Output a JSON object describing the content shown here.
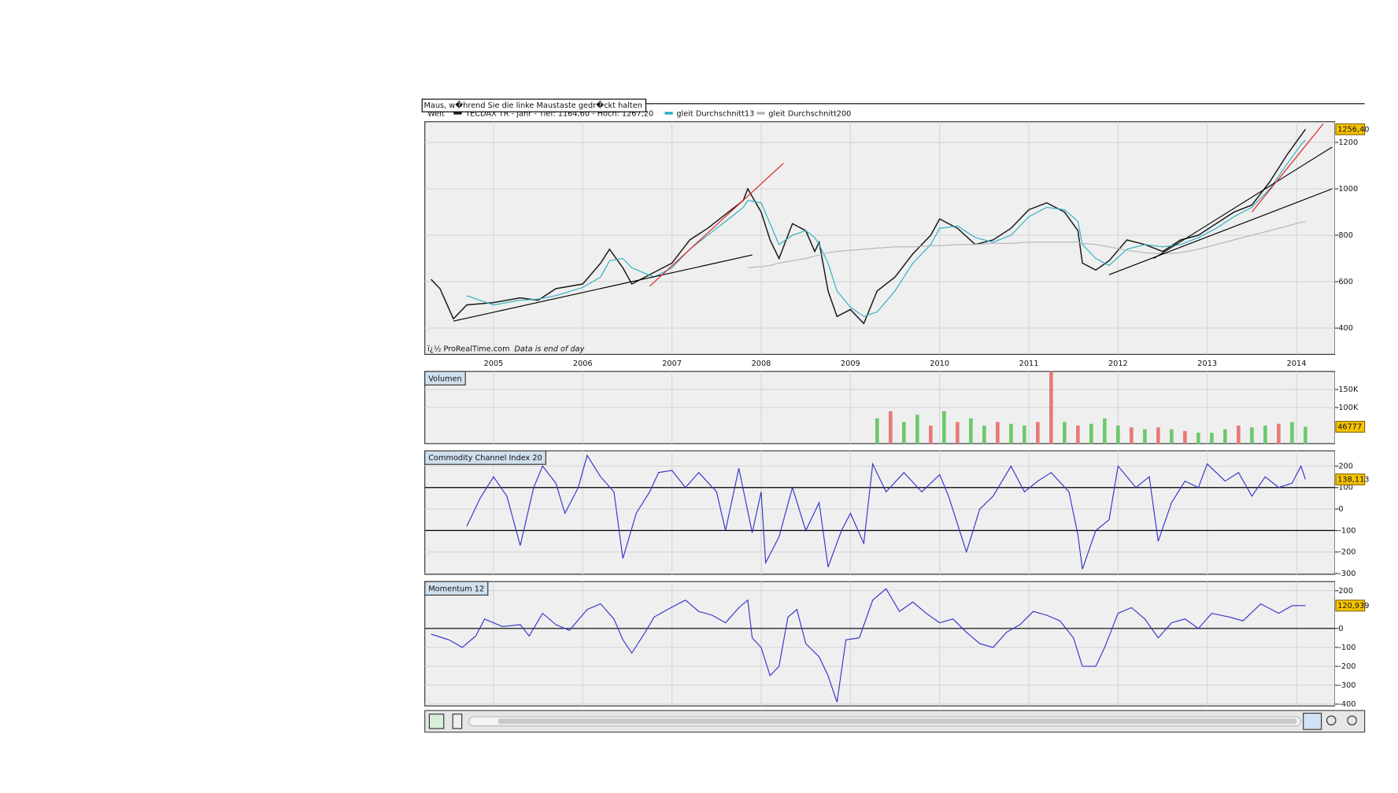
{
  "tooltip": "Maus, w�hrend Sie die linke Maustaste gedr�ckt halten",
  "chart_data": [
    {
      "type": "line",
      "legend_prefix": "Welt",
      "note": "ï¿½ ProRealTime.com",
      "note_italic": "Data is end of day",
      "x": [
        2004.3,
        2004.4,
        2004.55,
        2004.7,
        2005.0,
        2005.3,
        2005.5,
        2005.7,
        2006.0,
        2006.2,
        2006.3,
        2006.45,
        2006.55,
        2006.8,
        2007.0,
        2007.2,
        2007.4,
        2007.6,
        2007.8,
        2007.85,
        2008.0,
        2008.1,
        2008.2,
        2008.35,
        2008.5,
        2008.6,
        2008.65,
        2008.75,
        2008.85,
        2009.0,
        2009.15,
        2009.3,
        2009.5,
        2009.7,
        2009.9,
        2010.0,
        2010.2,
        2010.4,
        2010.6,
        2010.8,
        2011.0,
        2011.2,
        2011.4,
        2011.55,
        2011.6,
        2011.75,
        2011.9,
        2012.1,
        2012.3,
        2012.5,
        2012.7,
        2012.9,
        2013.1,
        2013.3,
        2013.5,
        2013.7,
        2013.9,
        2014.05,
        2014.1
      ],
      "series": [
        {
          "name": "TECDAX TR - Jahr - Tief: 1164,60 - Hoch: 1267,20",
          "color": "#1a1a1a",
          "values": [
            610,
            570,
            440,
            500,
            510,
            530,
            520,
            570,
            590,
            680,
            740,
            660,
            590,
            640,
            680,
            780,
            830,
            890,
            950,
            1000,
            900,
            780,
            700,
            850,
            820,
            730,
            770,
            560,
            450,
            480,
            420,
            560,
            620,
            720,
            800,
            870,
            830,
            760,
            780,
            830,
            910,
            940,
            900,
            820,
            680,
            650,
            690,
            780,
            760,
            730,
            780,
            800,
            850,
            900,
            930,
            1030,
            1150,
            1230,
            1256.4
          ]
        },
        {
          "name": "gleit Durchschnitt13",
          "color": "#2ab0c0",
          "values": [
            null,
            null,
            null,
            540,
            500,
            520,
            525,
            540,
            575,
            620,
            690,
            700,
            660,
            620,
            660,
            740,
            800,
            860,
            920,
            950,
            940,
            850,
            760,
            800,
            820,
            790,
            760,
            680,
            560,
            490,
            450,
            470,
            560,
            680,
            760,
            830,
            840,
            790,
            770,
            800,
            880,
            920,
            910,
            860,
            760,
            700,
            670,
            740,
            760,
            750,
            760,
            790,
            830,
            880,
            920,
            1000,
            1110,
            1190,
            1210
          ]
        },
        {
          "name": "gleit Durchschnitt200",
          "color": "#b4b4b4",
          "values": [
            null,
            null,
            null,
            null,
            null,
            null,
            null,
            null,
            null,
            null,
            null,
            null,
            null,
            null,
            null,
            null,
            null,
            null,
            null,
            660,
            665,
            670,
            680,
            690,
            700,
            710,
            715,
            725,
            730,
            735,
            740,
            745,
            750,
            750,
            755,
            755,
            760,
            760,
            765,
            765,
            770,
            770,
            770,
            770,
            765,
            760,
            750,
            735,
            725,
            720,
            725,
            740,
            760,
            780,
            800,
            820,
            840,
            855,
            860
          ]
        }
      ],
      "trendlines": [
        {
          "color": "#000000",
          "x": [
            2004.55,
            2007.9
          ],
          "y": [
            430,
            715
          ]
        },
        {
          "color": "#e02020",
          "x": [
            2006.75,
            2008.25
          ],
          "y": [
            580,
            1110
          ]
        },
        {
          "color": "#000000",
          "x": [
            2011.9,
            2014.4
          ],
          "y": [
            630,
            1000
          ]
        },
        {
          "color": "#000000",
          "x": [
            2012.4,
            2014.4
          ],
          "y": [
            700,
            1180
          ]
        },
        {
          "color": "#e02020",
          "x": [
            2013.5,
            2014.3
          ],
          "y": [
            900,
            1280
          ]
        }
      ],
      "xlim": [
        2004.23,
        2014.43
      ],
      "xticks": [
        2005,
        2006,
        2007,
        2008,
        2009,
        2010,
        2011,
        2012,
        2013,
        2014
      ],
      "ylim": [
        287,
        1289
      ],
      "yticks": [
        400,
        600,
        800,
        1000,
        1200
      ],
      "grid": true,
      "last": {
        "value": 1256.4,
        "label": "1256,40"
      }
    },
    {
      "type": "bar",
      "title": "Volumen",
      "x": [
        2009.3,
        2009.45,
        2009.6,
        2009.75,
        2009.9,
        2010.05,
        2010.2,
        2010.35,
        2010.5,
        2010.65,
        2010.8,
        2010.95,
        2011.1,
        2011.25,
        2011.4,
        2011.55,
        2011.7,
        2011.85,
        2012.0,
        2012.15,
        2012.3,
        2012.45,
        2012.6,
        2012.75,
        2012.9,
        2013.05,
        2013.2,
        2013.35,
        2013.5,
        2013.65,
        2013.8,
        2013.95,
        2014.1
      ],
      "values": [
        70000,
        90000,
        60000,
        80000,
        50000,
        90000,
        60000,
        70000,
        50000,
        60000,
        55000,
        50000,
        60000,
        200000,
        60000,
        50000,
        55000,
        70000,
        50000,
        45000,
        40000,
        45000,
        40000,
        35000,
        30000,
        30000,
        40000,
        50000,
        45000,
        50000,
        55000,
        60000,
        46777
      ],
      "colors": [
        "#6cc86c",
        "#e87878",
        "#6cc86c",
        "#6cc86c",
        "#e87878",
        "#6cc86c",
        "#e87878",
        "#6cc86c",
        "#6cc86c",
        "#e87878",
        "#6cc86c",
        "#6cc86c",
        "#e87878",
        "#e87878",
        "#6cc86c",
        "#e87878",
        "#6cc86c",
        "#6cc86c",
        "#6cc86c",
        "#e87878",
        "#6cc86c",
        "#e87878",
        "#6cc86c",
        "#e87878",
        "#6cc86c",
        "#6cc86c",
        "#6cc86c",
        "#e87878",
        "#6cc86c",
        "#6cc86c",
        "#e87878",
        "#6cc86c",
        "#6cc86c"
      ],
      "xlim": [
        2004.23,
        2014.43
      ],
      "ylim": [
        0,
        200000
      ],
      "yticks": [
        {
          "value": 100000,
          "label": "100K"
        },
        {
          "value": 150000,
          "label": "150K"
        }
      ],
      "grid": true,
      "last": {
        "value": 46777,
        "label": "46777"
      }
    },
    {
      "type": "line",
      "title": "Commodity Channel Index 20",
      "x": [
        2004.7,
        2004.85,
        2005.0,
        2005.15,
        2005.3,
        2005.45,
        2005.55,
        2005.7,
        2005.8,
        2005.95,
        2006.05,
        2006.2,
        2006.35,
        2006.45,
        2006.6,
        2006.75,
        2006.85,
        2007.0,
        2007.15,
        2007.3,
        2007.5,
        2007.6,
        2007.75,
        2007.9,
        2008.0,
        2008.05,
        2008.2,
        2008.35,
        2008.5,
        2008.65,
        2008.75,
        2008.9,
        2009.0,
        2009.15,
        2009.25,
        2009.4,
        2009.6,
        2009.8,
        2010.0,
        2010.1,
        2010.3,
        2010.45,
        2010.6,
        2010.8,
        2010.95,
        2011.1,
        2011.25,
        2011.45,
        2011.55,
        2011.6,
        2011.75,
        2011.9,
        2012.0,
        2012.2,
        2012.35,
        2012.45,
        2012.6,
        2012.75,
        2012.9,
        2013.0,
        2013.2,
        2013.35,
        2013.5,
        2013.65,
        2013.8,
        2013.95,
        2014.05,
        2014.1
      ],
      "series": [
        {
          "color": "#3333cc",
          "values": [
            -80,
            50,
            150,
            60,
            -170,
            100,
            200,
            120,
            -20,
            100,
            250,
            150,
            80,
            -230,
            -20,
            80,
            170,
            180,
            100,
            170,
            80,
            -100,
            190,
            -110,
            80,
            -250,
            -130,
            100,
            -100,
            30,
            -270,
            -100,
            -20,
            -160,
            210,
            80,
            170,
            80,
            160,
            60,
            -200,
            0,
            60,
            200,
            80,
            130,
            170,
            80,
            -120,
            -280,
            -100,
            -50,
            200,
            100,
            150,
            -150,
            30,
            130,
            100,
            210,
            130,
            170,
            60,
            150,
            100,
            120,
            200,
            138.113
          ]
        }
      ],
      "hlines": [
        100,
        -100
      ],
      "xlim": [
        2004.23,
        2014.43
      ],
      "ylim": [
        -304,
        271
      ],
      "yticks": [
        -300,
        -200,
        -100,
        0,
        100,
        200
      ],
      "grid": true,
      "last": {
        "value": 138.113,
        "label": "138,113"
      }
    },
    {
      "type": "line",
      "title": "Momentum 12",
      "x": [
        2004.3,
        2004.5,
        2004.65,
        2004.8,
        2004.9,
        2005.1,
        2005.3,
        2005.4,
        2005.55,
        2005.7,
        2005.85,
        2006.05,
        2006.2,
        2006.35,
        2006.45,
        2006.55,
        2006.7,
        2006.8,
        2006.95,
        2007.15,
        2007.3,
        2007.45,
        2007.6,
        2007.75,
        2007.85,
        2007.9,
        2008.0,
        2008.1,
        2008.2,
        2008.3,
        2008.4,
        2008.5,
        2008.65,
        2008.75,
        2008.85,
        2008.95,
        2009.1,
        2009.25,
        2009.4,
        2009.55,
        2009.7,
        2009.85,
        2010.0,
        2010.15,
        2010.3,
        2010.45,
        2010.6,
        2010.75,
        2010.9,
        2011.05,
        2011.2,
        2011.35,
        2011.5,
        2011.6,
        2011.75,
        2011.85,
        2012.0,
        2012.15,
        2012.3,
        2012.45,
        2012.6,
        2012.75,
        2012.9,
        2013.05,
        2013.25,
        2013.4,
        2013.6,
        2013.8,
        2013.95,
        2014.1
      ],
      "series": [
        {
          "color": "#3333cc",
          "values": [
            -30,
            -60,
            -100,
            -40,
            50,
            10,
            20,
            -40,
            80,
            20,
            -10,
            100,
            130,
            50,
            -60,
            -130,
            -20,
            60,
            100,
            150,
            90,
            70,
            30,
            110,
            150,
            -50,
            -100,
            -250,
            -200,
            60,
            100,
            -80,
            -150,
            -250,
            -390,
            -60,
            -50,
            150,
            210,
            90,
            140,
            80,
            30,
            50,
            -20,
            -80,
            -100,
            -20,
            20,
            90,
            70,
            40,
            -50,
            -200,
            -200,
            -100,
            80,
            110,
            50,
            -50,
            30,
            50,
            0,
            80,
            60,
            40,
            130,
            80,
            120,
            120.939
          ]
        }
      ],
      "hlines": [
        0
      ],
      "xlim": [
        2004.23,
        2014.43
      ],
      "ylim": [
        -410,
        248
      ],
      "yticks": [
        -400,
        -300,
        -200,
        -100,
        0,
        200
      ],
      "grid": true,
      "last": {
        "value": 120.939,
        "label": "120,939"
      }
    }
  ]
}
